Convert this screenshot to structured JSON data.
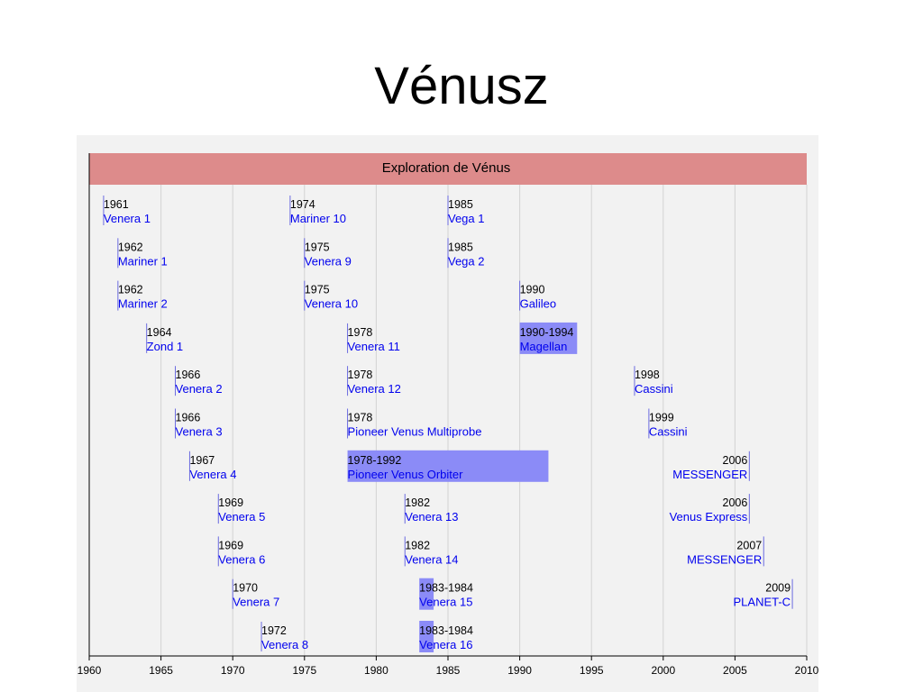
{
  "slide_title": "Vénusz",
  "colors": {
    "header_band": "#dd8b8b",
    "panel_bg": "#f2f2f2",
    "grid": "#d3d3d3",
    "bar": "#8b8bf7",
    "link_text": "#0000ee",
    "year_text": "#000000"
  },
  "chart_data": {
    "type": "timeline",
    "title": "Exploration de Vénus",
    "x_range": [
      1960,
      2010
    ],
    "tick_labels": [
      "1960",
      "1965",
      "1970",
      "1975",
      "1980",
      "1985",
      "1990",
      "1995",
      "2000",
      "2005",
      "2010"
    ],
    "grid": "vertical",
    "missions": [
      {
        "label": "1961",
        "name": "Venera 1",
        "start": 1961,
        "end": 1961,
        "row": 0
      },
      {
        "label": "1962",
        "name": "Mariner 1",
        "start": 1962,
        "end": 1962,
        "row": 1
      },
      {
        "label": "1962",
        "name": "Mariner 2",
        "start": 1962,
        "end": 1962,
        "row": 2
      },
      {
        "label": "1964",
        "name": "Zond 1",
        "start": 1964,
        "end": 1964,
        "row": 3
      },
      {
        "label": "1966",
        "name": "Venera 2",
        "start": 1966,
        "end": 1966,
        "row": 4
      },
      {
        "label": "1966",
        "name": "Venera 3",
        "start": 1966,
        "end": 1966,
        "row": 5
      },
      {
        "label": "1967",
        "name": "Venera 4",
        "start": 1967,
        "end": 1967,
        "row": 6
      },
      {
        "label": "1969",
        "name": "Venera 5",
        "start": 1969,
        "end": 1969,
        "row": 7
      },
      {
        "label": "1969",
        "name": "Venera 6",
        "start": 1969,
        "end": 1969,
        "row": 8
      },
      {
        "label": "1970",
        "name": "Venera 7",
        "start": 1970,
        "end": 1970,
        "row": 9
      },
      {
        "label": "1972",
        "name": "Venera 8",
        "start": 1972,
        "end": 1972,
        "row": 10
      },
      {
        "label": "1974",
        "name": "Mariner 10",
        "start": 1974,
        "end": 1974,
        "row": 0
      },
      {
        "label": "1975",
        "name": "Venera 9",
        "start": 1975,
        "end": 1975,
        "row": 1
      },
      {
        "label": "1975",
        "name": "Venera 10",
        "start": 1975,
        "end": 1975,
        "row": 2
      },
      {
        "label": "1978",
        "name": "Venera 11",
        "start": 1978,
        "end": 1978,
        "row": 3
      },
      {
        "label": "1978",
        "name": "Venera 12",
        "start": 1978,
        "end": 1978,
        "row": 4
      },
      {
        "label": "1978",
        "name": "Pioneer Venus Multiprobe",
        "start": 1978,
        "end": 1978,
        "row": 5
      },
      {
        "label": "1978-1992",
        "name": "Pioneer Venus Orbiter",
        "start": 1978,
        "end": 1992,
        "row": 6
      },
      {
        "label": "1982",
        "name": "Venera 13",
        "start": 1982,
        "end": 1982,
        "row": 7
      },
      {
        "label": "1982",
        "name": "Venera 14",
        "start": 1982,
        "end": 1982,
        "row": 8
      },
      {
        "label": "1983-1984",
        "name": "Venera 15",
        "start": 1983,
        "end": 1984,
        "row": 9
      },
      {
        "label": "1983-1984",
        "name": "Venera 16",
        "start": 1983,
        "end": 1984,
        "row": 10
      },
      {
        "label": "1985",
        "name": "Vega 1",
        "start": 1985,
        "end": 1985,
        "row": 0
      },
      {
        "label": "1985",
        "name": "Vega 2",
        "start": 1985,
        "end": 1985,
        "row": 1
      },
      {
        "label": "1990",
        "name": "Galileo",
        "start": 1990,
        "end": 1990,
        "row": 2
      },
      {
        "label": "1990-1994",
        "name": "Magellan",
        "start": 1990,
        "end": 1994,
        "row": 3
      },
      {
        "label": "1998",
        "name": "Cassini",
        "start": 1998,
        "end": 1998,
        "row": 4
      },
      {
        "label": "1999",
        "name": "Cassini",
        "start": 1999,
        "end": 1999,
        "row": 5
      },
      {
        "label": "2006",
        "name": "MESSENGER",
        "start": 2006,
        "end": 2006,
        "row": 6,
        "align": "right"
      },
      {
        "label": "2006",
        "name": "Venus Express",
        "start": 2006,
        "end": 2006,
        "row": 7,
        "align": "right"
      },
      {
        "label": "2007",
        "name": "MESSENGER",
        "start": 2007,
        "end": 2007,
        "row": 8,
        "align": "right"
      },
      {
        "label": "2009",
        "name": "PLANET-C",
        "start": 2009,
        "end": 2009,
        "row": 9,
        "align": "right"
      }
    ]
  }
}
